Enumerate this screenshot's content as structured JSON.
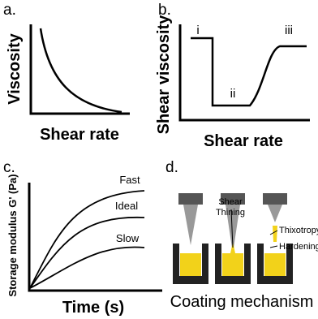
{
  "panels": {
    "a": {
      "label": "a.",
      "y_axis": "Viscosity",
      "x_axis": "Shear rate"
    },
    "b": {
      "label": "b.",
      "y_axis": "Shear viscosity",
      "x_axis": "Shear rate",
      "regions": [
        "i",
        "ii",
        "iii"
      ]
    },
    "c": {
      "label": "c.",
      "y_axis": "Storage modulus G' (Pa)",
      "x_axis": "Time (s)",
      "curves": [
        "Fast",
        "Ideal",
        "Slow"
      ]
    },
    "d": {
      "label": "d.",
      "annotations": [
        "Shear",
        "Thining",
        "Thixotropy",
        "Hardening"
      ],
      "caption": "Coating mechanism"
    }
  }
}
